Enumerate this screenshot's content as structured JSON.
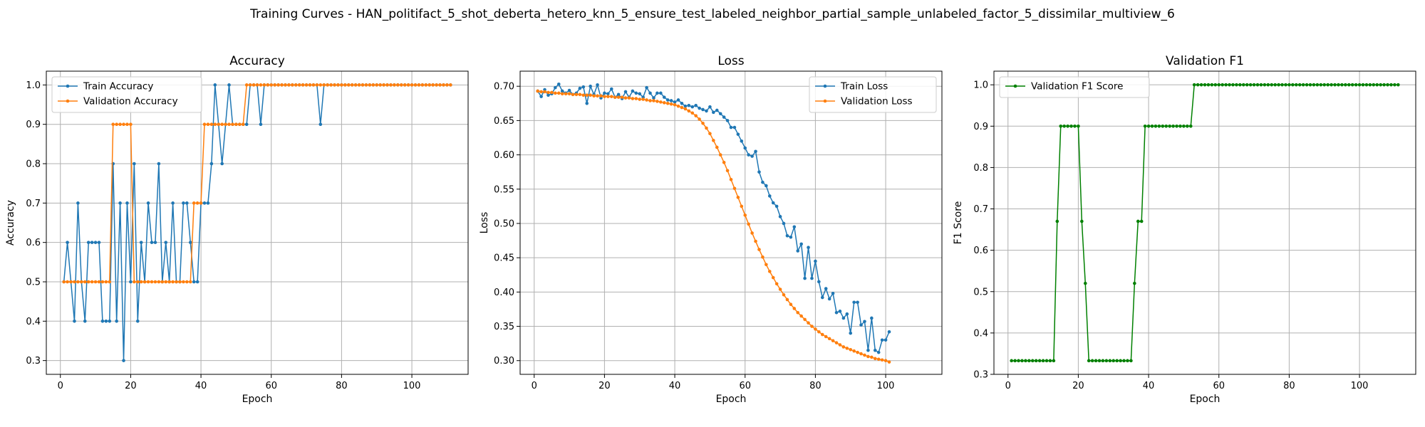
{
  "suptitle": "Training Curves - HAN_politifact_5_shot_deberta_hetero_knn_5_ensure_test_labeled_neighbor_partial_sample_unlabeled_factor_5_dissimilar_multiview_6",
  "colors": {
    "train": "#1f77b4",
    "validation": "#ff7f0e",
    "f1": "#008000",
    "grid": "#b0b0b0"
  },
  "chart_data": [
    {
      "type": "line",
      "title": "Accuracy",
      "xlabel": "Epoch",
      "ylabel": "Accuracy",
      "xlim": [
        -4,
        116
      ],
      "ylim": [
        0.265,
        1.035
      ],
      "xticks": [
        0,
        20,
        40,
        60,
        80,
        100
      ],
      "yticks": [
        0.3,
        0.4,
        0.5,
        0.6,
        0.7,
        0.8,
        0.9,
        1.0
      ],
      "ytick_decimals": 1,
      "grid": true,
      "legend_position": "upper-left",
      "series": [
        {
          "name": "Train Accuracy",
          "color": "#1f77b4",
          "x_start": 1,
          "values": [
            0.5,
            0.6,
            0.5,
            0.4,
            0.7,
            0.5,
            0.4,
            0.6,
            0.6,
            0.6,
            0.6,
            0.4,
            0.4,
            0.4,
            0.8,
            0.4,
            0.7,
            0.3,
            0.7,
            0.5,
            0.8,
            0.4,
            0.6,
            0.5,
            0.7,
            0.6,
            0.6,
            0.8,
            0.5,
            0.6,
            0.5,
            0.7,
            0.5,
            0.5,
            0.7,
            0.7,
            0.6,
            0.5,
            0.5,
            0.7,
            0.7,
            0.7,
            0.8,
            1.0,
            0.9,
            0.8,
            0.9,
            1.0,
            0.9,
            0.9,
            0.9,
            0.9,
            0.9,
            1.0,
            1.0,
            1.0,
            0.9,
            1.0,
            1.0,
            1.0,
            1.0,
            1.0,
            1.0,
            1.0,
            1.0,
            1.0,
            1.0,
            1.0,
            1.0,
            1.0,
            1.0,
            1.0,
            1.0,
            0.9,
            1.0,
            1.0,
            1.0,
            1.0,
            1.0,
            1.0,
            1.0,
            1.0,
            1.0,
            1.0,
            1.0,
            1.0,
            1.0,
            1.0,
            1.0,
            1.0,
            1.0,
            1.0,
            1.0,
            1.0,
            1.0,
            1.0,
            1.0,
            1.0,
            1.0,
            1.0,
            1.0,
            1.0,
            1.0,
            1.0,
            1.0,
            1.0,
            1.0,
            1.0,
            1.0,
            1.0,
            1.0
          ]
        },
        {
          "name": "Validation Accuracy",
          "color": "#ff7f0e",
          "x_start": 1,
          "values": [
            0.5,
            0.5,
            0.5,
            0.5,
            0.5,
            0.5,
            0.5,
            0.5,
            0.5,
            0.5,
            0.5,
            0.5,
            0.5,
            0.5,
            0.9,
            0.9,
            0.9,
            0.9,
            0.9,
            0.9,
            0.5,
            0.5,
            0.5,
            0.5,
            0.5,
            0.5,
            0.5,
            0.5,
            0.5,
            0.5,
            0.5,
            0.5,
            0.5,
            0.5,
            0.5,
            0.5,
            0.5,
            0.7,
            0.7,
            0.7,
            0.9,
            0.9,
            0.9,
            0.9,
            0.9,
            0.9,
            0.9,
            0.9,
            0.9,
            0.9,
            0.9,
            0.9,
            1.0,
            1.0,
            1.0,
            1.0,
            1.0,
            1.0,
            1.0,
            1.0,
            1.0,
            1.0,
            1.0,
            1.0,
            1.0,
            1.0,
            1.0,
            1.0,
            1.0,
            1.0,
            1.0,
            1.0,
            1.0,
            1.0,
            1.0,
            1.0,
            1.0,
            1.0,
            1.0,
            1.0,
            1.0,
            1.0,
            1.0,
            1.0,
            1.0,
            1.0,
            1.0,
            1.0,
            1.0,
            1.0,
            1.0,
            1.0,
            1.0,
            1.0,
            1.0,
            1.0,
            1.0,
            1.0,
            1.0,
            1.0,
            1.0,
            1.0,
            1.0,
            1.0,
            1.0,
            1.0,
            1.0,
            1.0,
            1.0,
            1.0,
            1.0
          ]
        }
      ]
    },
    {
      "type": "line",
      "title": "Loss",
      "xlabel": "Epoch",
      "ylabel": "Loss",
      "xlim": [
        -4,
        116
      ],
      "ylim": [
        0.28,
        0.722
      ],
      "xticks": [
        0,
        20,
        40,
        60,
        80,
        100
      ],
      "yticks": [
        0.3,
        0.35,
        0.4,
        0.45,
        0.5,
        0.55,
        0.6,
        0.65,
        0.7
      ],
      "ytick_decimals": 2,
      "grid": true,
      "legend_position": "upper-right",
      "series": [
        {
          "name": "Train Loss",
          "color": "#1f77b4",
          "x_start": 1,
          "values": [
            0.693,
            0.685,
            0.695,
            0.687,
            0.689,
            0.698,
            0.703,
            0.693,
            0.69,
            0.694,
            0.688,
            0.69,
            0.697,
            0.699,
            0.675,
            0.7,
            0.688,
            0.702,
            0.683,
            0.69,
            0.689,
            0.696,
            0.684,
            0.688,
            0.682,
            0.692,
            0.684,
            0.693,
            0.69,
            0.689,
            0.684,
            0.698,
            0.69,
            0.683,
            0.69,
            0.69,
            0.684,
            0.68,
            0.679,
            0.677,
            0.68,
            0.675,
            0.671,
            0.672,
            0.67,
            0.672,
            0.668,
            0.666,
            0.664,
            0.67,
            0.662,
            0.665,
            0.66,
            0.655,
            0.65,
            0.64,
            0.64,
            0.63,
            0.62,
            0.61,
            0.6,
            0.598,
            0.605,
            0.575,
            0.56,
            0.555,
            0.54,
            0.53,
            0.525,
            0.51,
            0.5,
            0.482,
            0.48,
            0.495,
            0.46,
            0.47,
            0.42,
            0.465,
            0.42,
            0.445,
            0.415,
            0.392,
            0.405,
            0.39,
            0.398,
            0.37,
            0.372,
            0.362,
            0.368,
            0.34,
            0.385,
            0.385,
            0.352,
            0.357,
            0.315,
            0.362,
            0.315,
            0.312,
            0.33,
            0.33,
            0.342
          ]
        },
        {
          "name": "Validation Loss",
          "color": "#ff7f0e",
          "x_start": 1,
          "values": [
            0.693,
            0.692,
            0.692,
            0.691,
            0.691,
            0.69,
            0.69,
            0.689,
            0.689,
            0.689,
            0.688,
            0.688,
            0.688,
            0.687,
            0.687,
            0.687,
            0.686,
            0.686,
            0.686,
            0.685,
            0.685,
            0.685,
            0.684,
            0.684,
            0.684,
            0.683,
            0.683,
            0.682,
            0.682,
            0.681,
            0.681,
            0.68,
            0.679,
            0.679,
            0.678,
            0.677,
            0.676,
            0.675,
            0.674,
            0.673,
            0.671,
            0.669,
            0.667,
            0.664,
            0.661,
            0.657,
            0.652,
            0.646,
            0.639,
            0.631,
            0.621,
            0.611,
            0.6,
            0.589,
            0.577,
            0.564,
            0.551,
            0.538,
            0.525,
            0.512,
            0.499,
            0.486,
            0.474,
            0.462,
            0.451,
            0.44,
            0.43,
            0.421,
            0.412,
            0.404,
            0.396,
            0.389,
            0.382,
            0.376,
            0.37,
            0.365,
            0.36,
            0.355,
            0.35,
            0.346,
            0.342,
            0.338,
            0.335,
            0.332,
            0.329,
            0.326,
            0.323,
            0.32,
            0.318,
            0.316,
            0.314,
            0.312,
            0.31,
            0.308,
            0.306,
            0.305,
            0.303,
            0.302,
            0.301,
            0.3,
            0.298
          ]
        }
      ]
    },
    {
      "type": "line",
      "title": "Validation F1",
      "xlabel": "Epoch",
      "ylabel": "F1 Score",
      "xlim": [
        -4,
        116
      ],
      "ylim": [
        0.3,
        1.033
      ],
      "xticks": [
        0,
        20,
        40,
        60,
        80,
        100
      ],
      "yticks": [
        0.3,
        0.4,
        0.5,
        0.6,
        0.7,
        0.8,
        0.9,
        1.0
      ],
      "ytick_decimals": 1,
      "grid": true,
      "legend_position": "upper-left",
      "series": [
        {
          "name": "Validation F1 Score",
          "color": "#008000",
          "x_start": 1,
          "values": [
            0.333,
            0.333,
            0.333,
            0.333,
            0.333,
            0.333,
            0.333,
            0.333,
            0.333,
            0.333,
            0.333,
            0.333,
            0.333,
            0.67,
            0.9,
            0.9,
            0.9,
            0.9,
            0.9,
            0.9,
            0.67,
            0.52,
            0.333,
            0.333,
            0.333,
            0.333,
            0.333,
            0.333,
            0.333,
            0.333,
            0.333,
            0.333,
            0.333,
            0.333,
            0.333,
            0.52,
            0.67,
            0.67,
            0.9,
            0.9,
            0.9,
            0.9,
            0.9,
            0.9,
            0.9,
            0.9,
            0.9,
            0.9,
            0.9,
            0.9,
            0.9,
            0.9,
            1.0,
            1.0,
            1.0,
            1.0,
            1.0,
            1.0,
            1.0,
            1.0,
            1.0,
            1.0,
            1.0,
            1.0,
            1.0,
            1.0,
            1.0,
            1.0,
            1.0,
            1.0,
            1.0,
            1.0,
            1.0,
            1.0,
            1.0,
            1.0,
            1.0,
            1.0,
            1.0,
            1.0,
            1.0,
            1.0,
            1.0,
            1.0,
            1.0,
            1.0,
            1.0,
            1.0,
            1.0,
            1.0,
            1.0,
            1.0,
            1.0,
            1.0,
            1.0,
            1.0,
            1.0,
            1.0,
            1.0,
            1.0,
            1.0,
            1.0,
            1.0,
            1.0,
            1.0,
            1.0,
            1.0,
            1.0,
            1.0,
            1.0,
            1.0
          ]
        }
      ]
    }
  ]
}
